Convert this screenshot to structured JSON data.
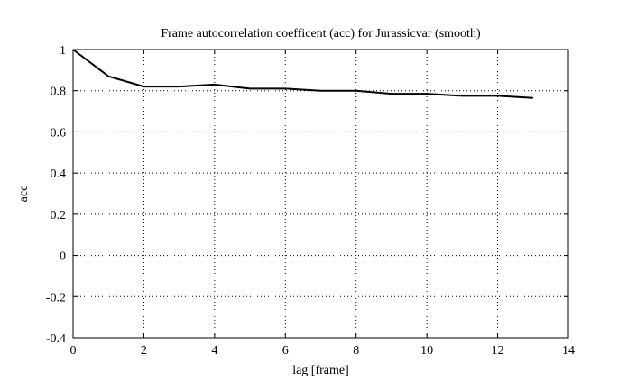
{
  "chart_data": {
    "type": "line",
    "title": "Frame autocorrelation coefficent (acc) for Jurassicvar (smooth)",
    "xlabel": "lag [frame]",
    "ylabel": "acc",
    "xlim": [
      0,
      14
    ],
    "ylim": [
      -0.4,
      1
    ],
    "x_ticks": [
      0,
      2,
      4,
      6,
      8,
      10,
      12,
      14
    ],
    "y_ticks": [
      -0.4,
      -0.2,
      0,
      0.2,
      0.4,
      0.6,
      0.8,
      1
    ],
    "x_tick_labels": [
      "0",
      "2",
      "4",
      "6",
      "8",
      "10",
      "12",
      "14"
    ],
    "y_tick_labels": [
      "-0.4",
      "-0.2",
      "0",
      "0.2",
      "0.4",
      "0.6",
      "0.8",
      "1"
    ],
    "grid": true,
    "grid_style": "dotted",
    "series": [
      {
        "color": "#000000",
        "x": [
          0,
          1,
          2,
          3,
          4,
          5,
          6,
          7,
          8,
          9,
          10,
          11,
          12,
          13
        ],
        "y": [
          1.0,
          0.87,
          0.82,
          0.82,
          0.83,
          0.81,
          0.81,
          0.8,
          0.8,
          0.785,
          0.785,
          0.775,
          0.775,
          0.765
        ]
      }
    ]
  }
}
